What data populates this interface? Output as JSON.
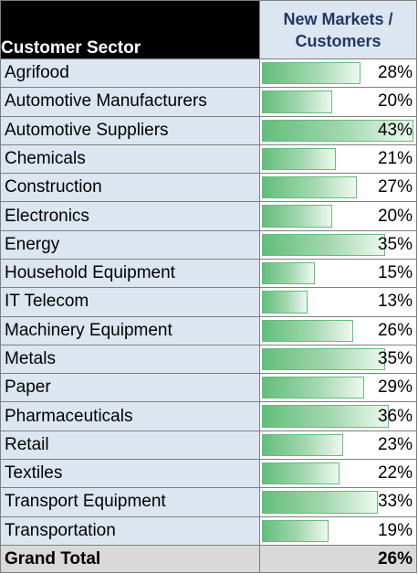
{
  "header": {
    "sector_label": "Customer Sector",
    "metric_line1": "New Markets /",
    "metric_line2": "Customers"
  },
  "rows": [
    {
      "sector": "Agrifood",
      "value": "28%",
      "pct": 28
    },
    {
      "sector": "Automotive Manufacturers",
      "value": "20%",
      "pct": 20
    },
    {
      "sector": "Automotive Suppliers",
      "value": "43%",
      "pct": 43
    },
    {
      "sector": "Chemicals",
      "value": "21%",
      "pct": 21
    },
    {
      "sector": "Construction",
      "value": "27%",
      "pct": 27
    },
    {
      "sector": "Electronics",
      "value": "20%",
      "pct": 20
    },
    {
      "sector": "Energy",
      "value": "35%",
      "pct": 35
    },
    {
      "sector": "Household Equipment",
      "value": "15%",
      "pct": 15
    },
    {
      "sector": "IT Telecom",
      "value": "13%",
      "pct": 13
    },
    {
      "sector": "Machinery Equipment",
      "value": "26%",
      "pct": 26
    },
    {
      "sector": "Metals",
      "value": "35%",
      "pct": 35
    },
    {
      "sector": "Paper",
      "value": "29%",
      "pct": 29
    },
    {
      "sector": "Pharmaceuticals",
      "value": "36%",
      "pct": 36
    },
    {
      "sector": "Retail",
      "value": "23%",
      "pct": 23
    },
    {
      "sector": "Textiles",
      "value": "22%",
      "pct": 22
    },
    {
      "sector": "Transport Equipment",
      "value": "33%",
      "pct": 33
    },
    {
      "sector": "Transportation",
      "value": "19%",
      "pct": 19
    }
  ],
  "total": {
    "label": "Grand Total",
    "value": "26%"
  },
  "colors": {
    "bar_fill": "#63be7b",
    "header_bg": "#000000",
    "label_bg": "#dce6f1"
  }
}
